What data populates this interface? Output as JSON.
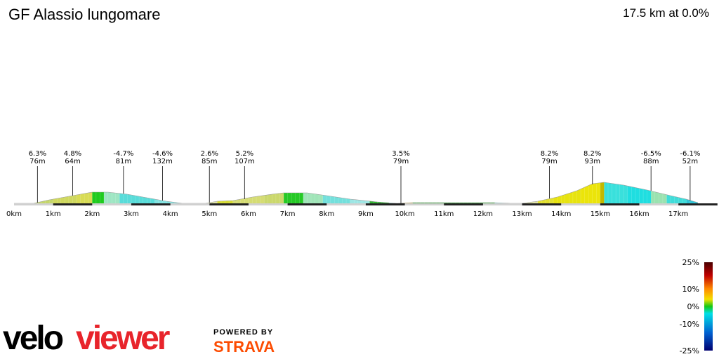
{
  "header": {
    "title": "GF Alassio lungomare",
    "summary": "17.5 km at 0.0%"
  },
  "chart_data": {
    "type": "area",
    "xlabel": "",
    "ylabel": "",
    "xlim": [
      0,
      17.5
    ],
    "x_unit": "km",
    "x_ticks": [
      0,
      1,
      2,
      3,
      4,
      5,
      6,
      7,
      8,
      9,
      10,
      11,
      12,
      13,
      14,
      15,
      16,
      17
    ],
    "x_tick_labels": [
      "0km",
      "1km",
      "2km",
      "3km",
      "4km",
      "5km",
      "6km",
      "7km",
      "8km",
      "9km",
      "10km",
      "11km",
      "12km",
      "13km",
      "14km",
      "15km",
      "16km",
      "17km"
    ],
    "ylim": [
      0,
      40
    ],
    "y_unit": "m",
    "profile": [
      {
        "x": 0.0,
        "y": 0
      },
      {
        "x": 0.5,
        "y": 0
      },
      {
        "x": 0.9,
        "y": 5
      },
      {
        "x": 1.3,
        "y": 9
      },
      {
        "x": 1.7,
        "y": 13
      },
      {
        "x": 2.0,
        "y": 16
      },
      {
        "x": 2.4,
        "y": 16
      },
      {
        "x": 2.9,
        "y": 13
      },
      {
        "x": 3.4,
        "y": 8
      },
      {
        "x": 3.9,
        "y": 3
      },
      {
        "x": 4.3,
        "y": 0
      },
      {
        "x": 4.9,
        "y": 0
      },
      {
        "x": 5.2,
        "y": 3
      },
      {
        "x": 5.6,
        "y": 4
      },
      {
        "x": 6.1,
        "y": 9
      },
      {
        "x": 6.6,
        "y": 13
      },
      {
        "x": 6.9,
        "y": 15
      },
      {
        "x": 7.5,
        "y": 15
      },
      {
        "x": 8.0,
        "y": 11
      },
      {
        "x": 8.6,
        "y": 6
      },
      {
        "x": 9.3,
        "y": 2
      },
      {
        "x": 9.8,
        "y": 0
      },
      {
        "x": 10.2,
        "y": 1
      },
      {
        "x": 11.5,
        "y": 1
      },
      {
        "x": 12.3,
        "y": 1
      },
      {
        "x": 12.7,
        "y": 0
      },
      {
        "x": 13.0,
        "y": 0
      },
      {
        "x": 13.4,
        "y": 3
      },
      {
        "x": 13.9,
        "y": 9
      },
      {
        "x": 14.4,
        "y": 18
      },
      {
        "x": 14.8,
        "y": 28
      },
      {
        "x": 15.1,
        "y": 30
      },
      {
        "x": 15.6,
        "y": 26
      },
      {
        "x": 16.2,
        "y": 19
      },
      {
        "x": 16.8,
        "y": 11
      },
      {
        "x": 17.2,
        "y": 6
      },
      {
        "x": 17.5,
        "y": 1
      }
    ],
    "segments": [
      {
        "from": 0.0,
        "to": 0.5,
        "color": "#35b535"
      },
      {
        "from": 0.5,
        "to": 1.0,
        "color": "#c4d66a"
      },
      {
        "from": 1.0,
        "to": 1.6,
        "color": "#cfd85e"
      },
      {
        "from": 1.6,
        "to": 2.0,
        "color": "#d8dc55"
      },
      {
        "from": 2.0,
        "to": 2.3,
        "color": "#1ecb1e"
      },
      {
        "from": 2.3,
        "to": 2.7,
        "color": "#9ee6c3"
      },
      {
        "from": 2.7,
        "to": 3.6,
        "color": "#58dcd9"
      },
      {
        "from": 3.6,
        "to": 4.3,
        "color": "#82e3e1"
      },
      {
        "from": 4.3,
        "to": 4.9,
        "color": "#3fb53f"
      },
      {
        "from": 4.9,
        "to": 5.2,
        "color": "#dfe3a8"
      },
      {
        "from": 5.2,
        "to": 5.6,
        "color": "#d6dc33"
      },
      {
        "from": 5.6,
        "to": 6.4,
        "color": "#d5dc73"
      },
      {
        "from": 6.4,
        "to": 6.9,
        "color": "#cbd86c"
      },
      {
        "from": 6.9,
        "to": 7.4,
        "color": "#25c925"
      },
      {
        "from": 7.4,
        "to": 7.9,
        "color": "#a0e5b8"
      },
      {
        "from": 7.9,
        "to": 8.6,
        "color": "#73e0dc"
      },
      {
        "from": 8.6,
        "to": 9.1,
        "color": "#9de6e4"
      },
      {
        "from": 9.1,
        "to": 9.6,
        "color": "#30b530"
      },
      {
        "from": 9.6,
        "to": 9.9,
        "color": "#9de6e4"
      },
      {
        "from": 9.9,
        "to": 10.2,
        "color": "#d8b84a"
      },
      {
        "from": 10.2,
        "to": 12.3,
        "color": "#2fb22f"
      },
      {
        "from": 12.3,
        "to": 12.6,
        "color": "#9de6e4"
      },
      {
        "from": 12.6,
        "to": 13.0,
        "color": "#44b944"
      },
      {
        "from": 13.0,
        "to": 13.4,
        "color": "#dfe3a8"
      },
      {
        "from": 13.4,
        "to": 13.8,
        "color": "#e2e030"
      },
      {
        "from": 13.8,
        "to": 14.5,
        "color": "#e7e30f"
      },
      {
        "from": 14.5,
        "to": 15.0,
        "color": "#ebe40a"
      },
      {
        "from": 15.0,
        "to": 15.1,
        "color": "#c2b800"
      },
      {
        "from": 15.1,
        "to": 15.7,
        "color": "#39e0dc"
      },
      {
        "from": 15.7,
        "to": 16.3,
        "color": "#1fdee0"
      },
      {
        "from": 16.3,
        "to": 16.7,
        "color": "#9ae2b0"
      },
      {
        "from": 16.7,
        "to": 17.2,
        "color": "#3fdcd9"
      },
      {
        "from": 17.2,
        "to": 17.5,
        "color": "#2ec4d6"
      }
    ],
    "annotations": [
      {
        "x": 0.6,
        "y": 1,
        "grade": "6.3%",
        "gain": "76m"
      },
      {
        "x": 1.5,
        "y": 11,
        "grade": "4.8%",
        "gain": "64m"
      },
      {
        "x": 2.8,
        "y": 14,
        "grade": "-4.7%",
        "gain": "81m"
      },
      {
        "x": 3.8,
        "y": 4,
        "grade": "-4.6%",
        "gain": "132m"
      },
      {
        "x": 5.0,
        "y": 1,
        "grade": "2.6%",
        "gain": "85m"
      },
      {
        "x": 5.9,
        "y": 6,
        "grade": "5.2%",
        "gain": "107m"
      },
      {
        "x": 9.9,
        "y": 0,
        "grade": "3.5%",
        "gain": "79m"
      },
      {
        "x": 13.7,
        "y": 7,
        "grade": "8.2%",
        "gain": "79m"
      },
      {
        "x": 14.8,
        "y": 27,
        "grade": "8.2%",
        "gain": "93m"
      },
      {
        "x": 16.3,
        "y": 18,
        "grade": "-6.5%",
        "gain": "88m"
      },
      {
        "x": 17.3,
        "y": 4,
        "grade": "-6.1%",
        "gain": "52m"
      }
    ]
  },
  "legend": {
    "labels": [
      "25%",
      "10%",
      "0%",
      "-10%",
      "-25%"
    ],
    "values": [
      25,
      10,
      0,
      -10,
      -25
    ]
  },
  "branding": {
    "velo": "velo",
    "viewer": "viewer",
    "powered_by": "POWERED BY",
    "strava": "STRAVA"
  },
  "colors": {
    "brand_red": "#e8242b",
    "strava_orange": "#fc4c02"
  }
}
